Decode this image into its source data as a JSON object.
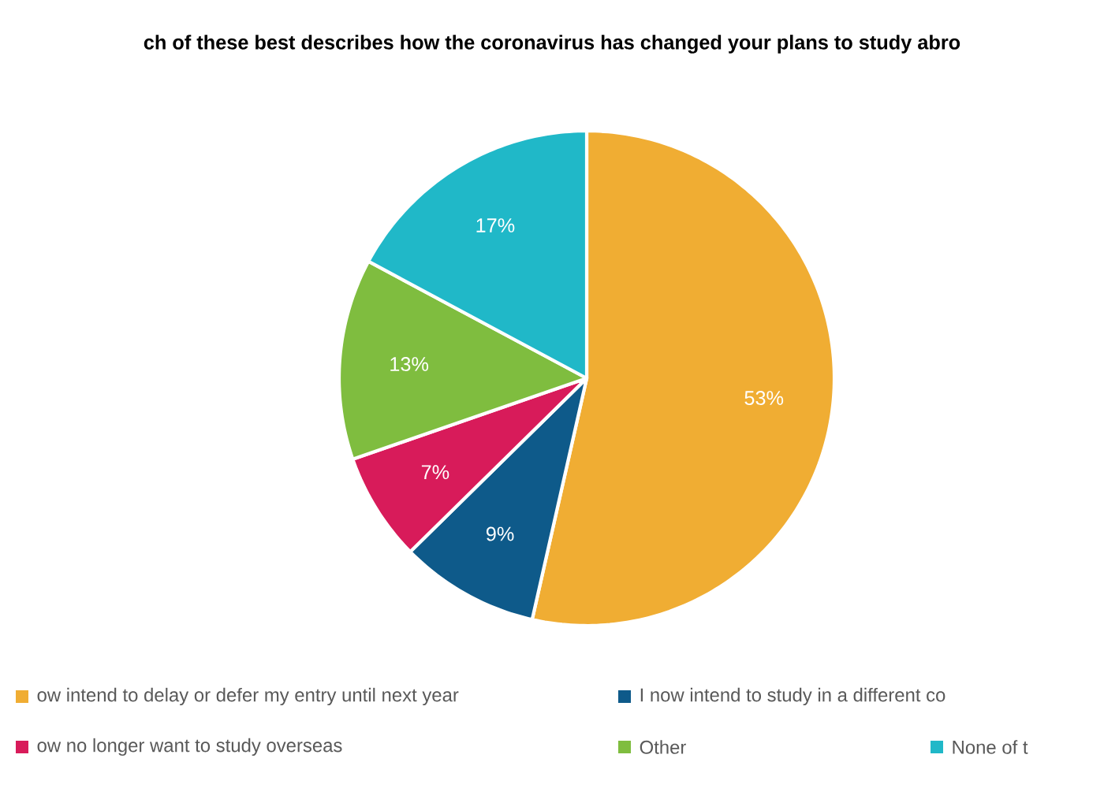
{
  "chart_data": {
    "type": "pie",
    "title": "ch of these best describes how the coronavirus has changed your plans to study abro",
    "categories": [
      "ow intend to delay or defer my entry until next year",
      "I now intend to study in a different co",
      "ow no longer want to study overseas",
      "Other",
      "None of t"
    ],
    "values": [
      53,
      9,
      7,
      13,
      17
    ],
    "value_labels": [
      "53%",
      "9%",
      "7%",
      "13%",
      "17%"
    ],
    "colors": [
      "#f0ad33",
      "#0e5a8a",
      "#d81b5a",
      "#7fbd3f",
      "#20b8c8"
    ],
    "legend": "bottom"
  }
}
